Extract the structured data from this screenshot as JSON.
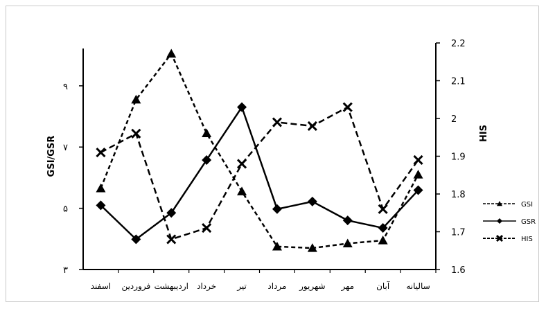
{
  "chart_data": {
    "type": "line",
    "categories": [
      "اسفند",
      "فروردین",
      "اردیبهشت",
      "خرداد",
      "تیر",
      "مرداد",
      "شهریور",
      "مهر",
      "آبان",
      "سالیانه"
    ],
    "y_left": {
      "label": "GSI/GSR",
      "ylim": [
        3,
        10.4
      ],
      "ticks": [
        3,
        5,
        7,
        9
      ],
      "tick_labels": [
        "۳",
        "۵",
        "۷",
        "۹"
      ]
    },
    "y_right": {
      "label": "HIS",
      "ylim": [
        1.6,
        2.2
      ],
      "ticks": [
        1.6,
        1.7,
        1.8,
        1.9,
        2.0,
        2.1,
        2.2
      ],
      "tick_labels": [
        "1.6",
        "1.7",
        "1.8",
        "1.9",
        "2",
        "2.1",
        "2.2"
      ]
    },
    "series": [
      {
        "name": "GSI",
        "axis": "left",
        "marker": "triangle",
        "dash": "dashed",
        "color": "#000000",
        "values": [
          5.65,
          8.55,
          10.05,
          7.45,
          5.55,
          3.75,
          3.7,
          3.85,
          3.95,
          6.1
        ]
      },
      {
        "name": "GSR",
        "axis": "right",
        "marker": "diamond",
        "dash": "solid",
        "color": "#000000",
        "values": [
          1.77,
          1.68,
          1.75,
          1.89,
          2.03,
          1.76,
          1.78,
          1.73,
          1.71,
          1.81
        ]
      },
      {
        "name": "HIS",
        "axis": "right",
        "marker": "x",
        "dash": "dashed",
        "color": "#000000",
        "values": [
          1.91,
          1.96,
          1.68,
          1.71,
          1.88,
          1.99,
          1.98,
          2.03,
          1.76,
          1.89
        ]
      }
    ],
    "legend": [
      "GSI",
      "GSR",
      "HIS"
    ],
    "legend_position": "right",
    "grid": false
  }
}
